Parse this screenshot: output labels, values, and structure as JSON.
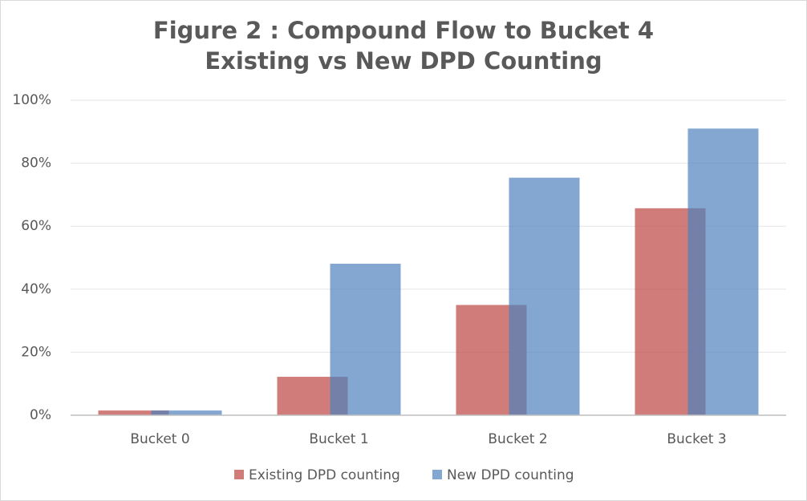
{
  "chart_data": {
    "type": "bar",
    "title": "Figure 2 : Compound Flow to Bucket 4",
    "subtitle": "Existing vs New DPD Counting",
    "categories": [
      "Bucket 0",
      "Bucket 1",
      "Bucket 2",
      "Bucket 3"
    ],
    "series": [
      {
        "name": "Existing DPD counting",
        "color": "#c0504d",
        "values": [
          1.5,
          12.2,
          35,
          65.7
        ]
      },
      {
        "name": "New DPD counting",
        "color": "#4f81bd",
        "values": [
          1.5,
          48.1,
          75.4,
          91
        ]
      }
    ],
    "ylim": [
      0,
      100
    ],
    "yticks": [
      {
        "value": 0,
        "label": "0%"
      },
      {
        "value": 20,
        "label": "20%"
      },
      {
        "value": 40,
        "label": "40%"
      },
      {
        "value": 60,
        "label": "60%"
      },
      {
        "value": 80,
        "label": "80%"
      },
      {
        "value": 100,
        "label": "100%"
      }
    ],
    "grid": true,
    "legend": "bottom"
  }
}
